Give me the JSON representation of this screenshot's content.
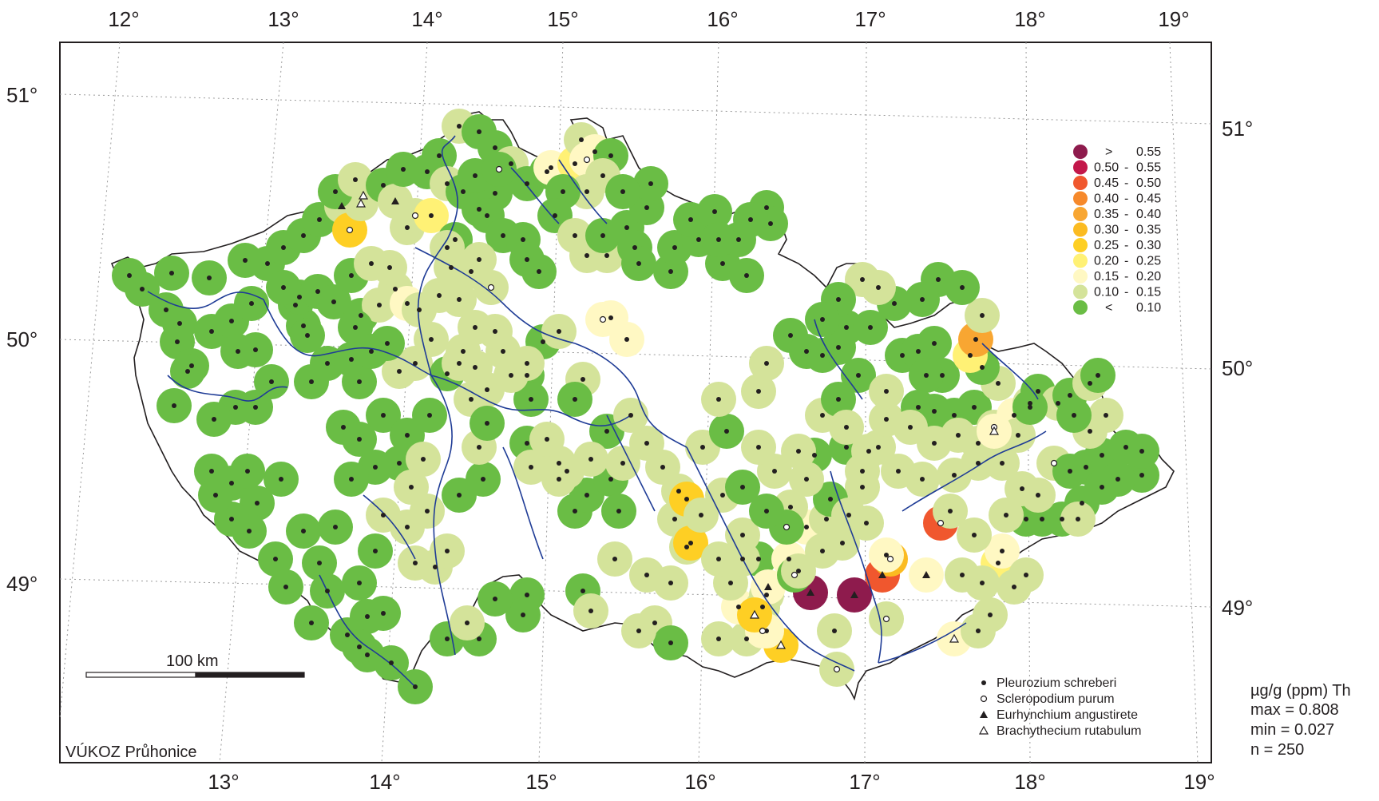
{
  "map": {
    "top_lon_labels": [
      "12°",
      "13°",
      "14°",
      "15°",
      "16°",
      "17°",
      "18°",
      "19°"
    ],
    "bottom_lon_labels": [
      "13°",
      "14°",
      "15°",
      "16°",
      "17°",
      "18°",
      "19°"
    ],
    "left_lat_labels": [
      "51°",
      "50°",
      "49°"
    ],
    "right_lat_labels": [
      "51°",
      "50°",
      "49°"
    ],
    "scale_bar_label": "100 km",
    "credit": "VÚKOZ Průhonice"
  },
  "legend": {
    "classes": [
      {
        "op": ">",
        "low": "",
        "high": "0.55",
        "color": "#8e1b4d"
      },
      {
        "op": "",
        "low": "0.50",
        "high": "0.55",
        "color": "#c3174a"
      },
      {
        "op": "",
        "low": "0.45",
        "high": "0.50",
        "color": "#f0572e"
      },
      {
        "op": "",
        "low": "0.40",
        "high": "0.45",
        "color": "#f6892b"
      },
      {
        "op": "",
        "low": "0.35",
        "high": "0.40",
        "color": "#f8a632"
      },
      {
        "op": "",
        "low": "0.30",
        "high": "0.35",
        "color": "#fbbb21"
      },
      {
        "op": "",
        "low": "0.25",
        "high": "0.30",
        "color": "#fecf24"
      },
      {
        "op": "",
        "low": "0.20",
        "high": "0.25",
        "color": "#fff175"
      },
      {
        "op": "",
        "low": "0.15",
        "high": "0.20",
        "color": "#fff8c3"
      },
      {
        "op": "",
        "low": "0.10",
        "high": "0.15",
        "color": "#d4e39a"
      },
      {
        "op": "<",
        "low": "",
        "high": "0.10",
        "color": "#6abd45"
      }
    ],
    "species": [
      {
        "marker": "dot",
        "name": "Pleurozium schreberi"
      },
      {
        "marker": "circle",
        "name": "Scleropodium purum"
      },
      {
        "marker": "triangle-filled",
        "name": "Eurhynchium angustirete"
      },
      {
        "marker": "triangle-open",
        "name": "Brachythecium rutabulum"
      }
    ]
  },
  "stats": {
    "unit": "µg/g (ppm) Th",
    "max": "max = 0.808",
    "min": "min = 0.027",
    "n": "n = 250"
  }
}
